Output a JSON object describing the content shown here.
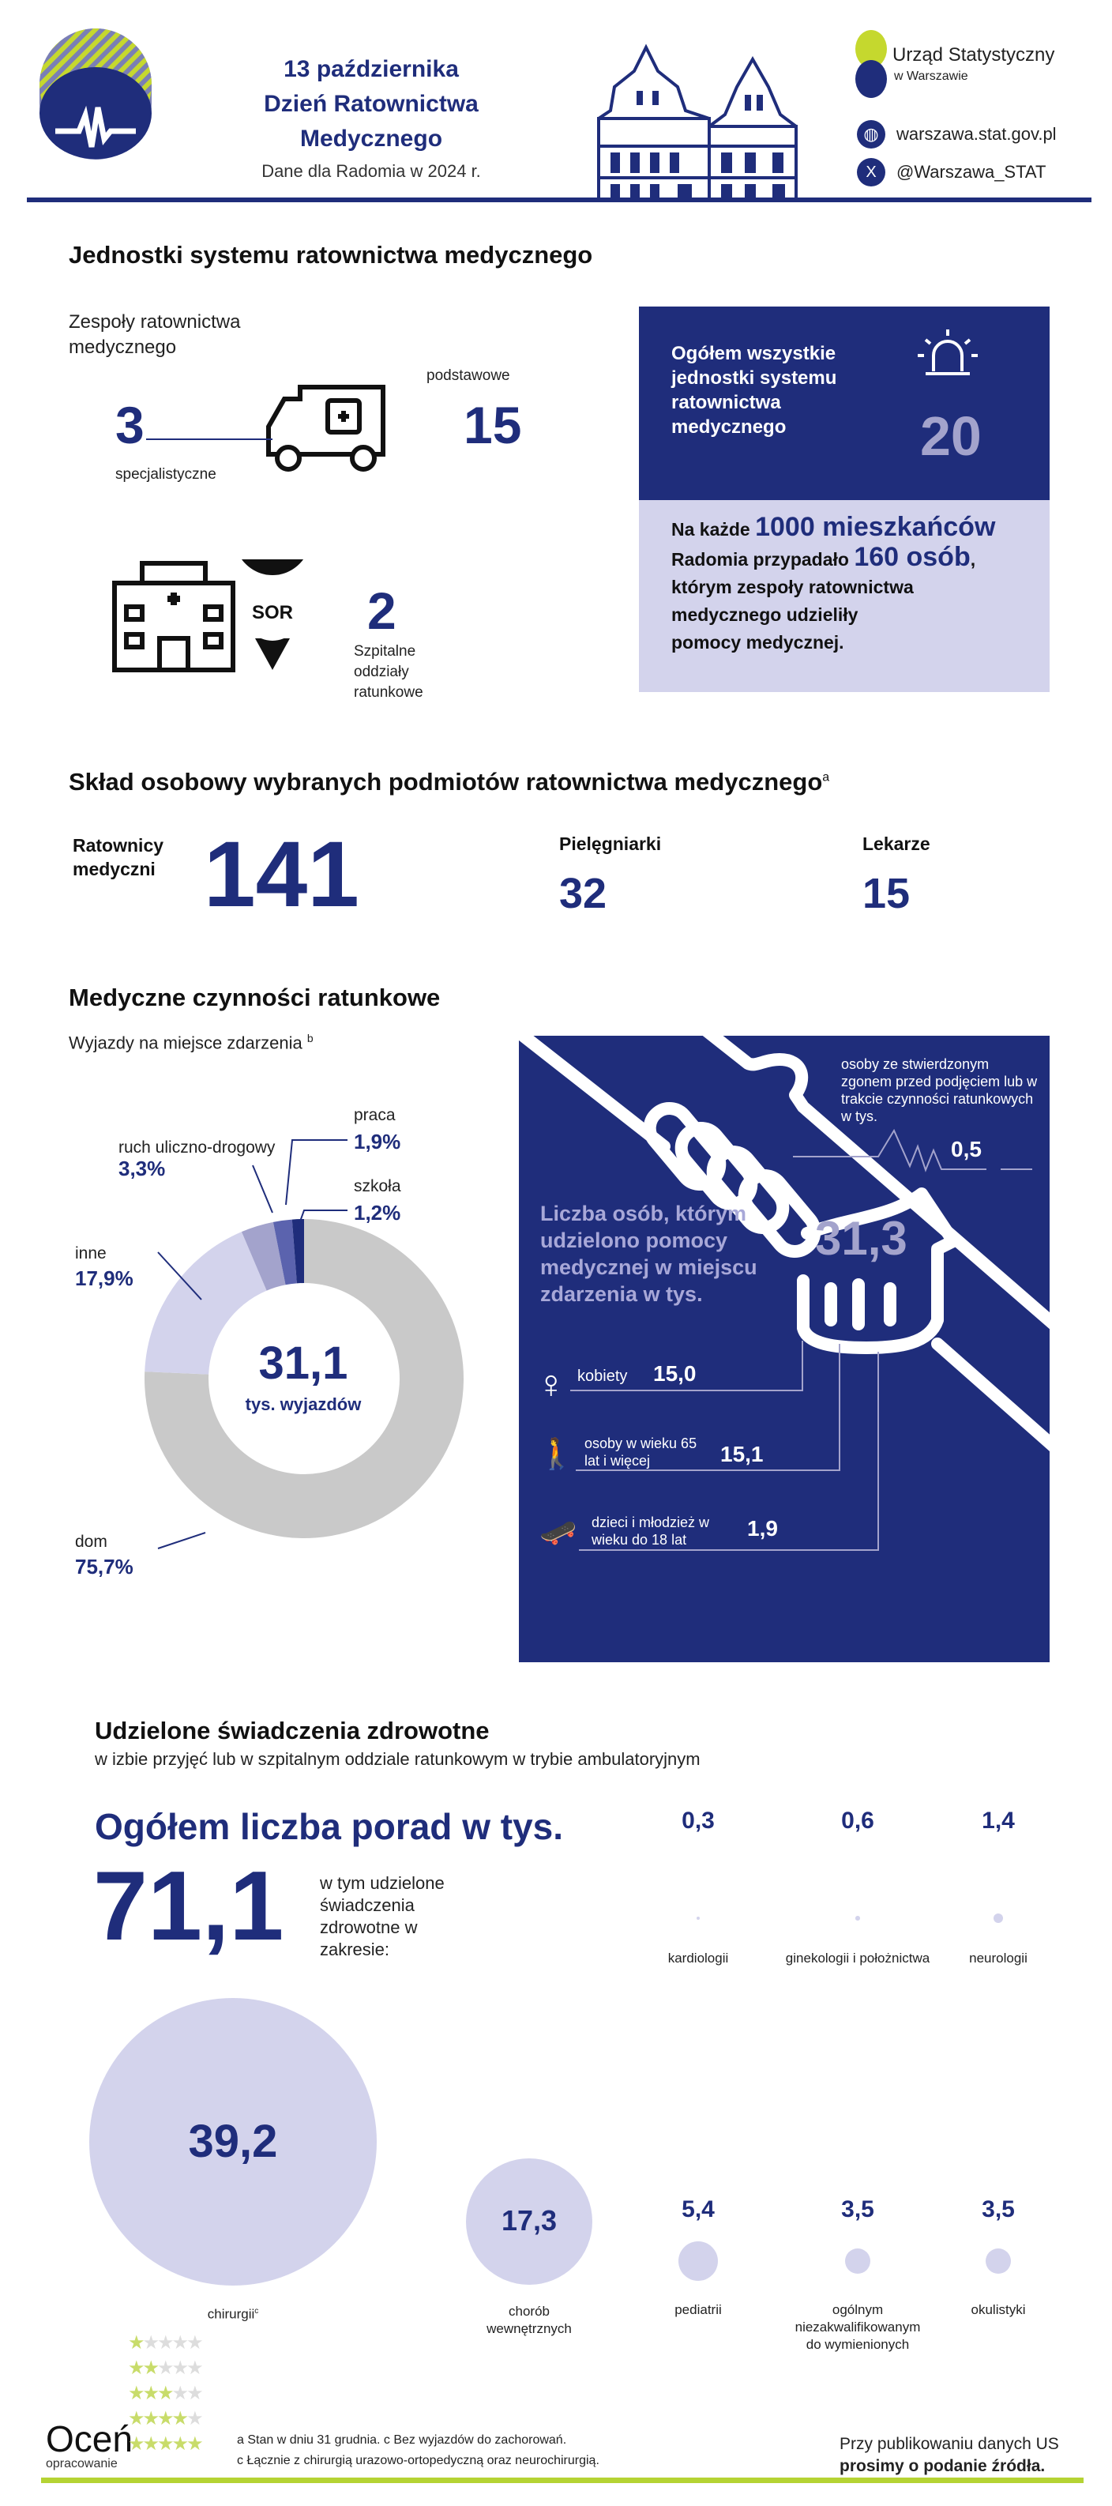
{
  "header": {
    "line1": "13 października",
    "line2": "Dzień Ratownictwa",
    "line3": "Medycznego",
    "subtitle": "Dane dla Radomia w 2024 r.",
    "org_name": "Urząd Statystyczny",
    "org_sub": "w Warszawie",
    "website": "warszawa.stat.gov.pl",
    "twitter": "@Warszawa_STAT",
    "icons": [
      "heartbeat-icon",
      "building-illustration",
      "globe-icon",
      "x-logo-icon"
    ]
  },
  "units": {
    "title": "Jednostki systemu ratownictwa medycznego",
    "teams_label": "Zespoły ratownictwa medycznego",
    "specialist_value": "3",
    "specialist_label": "specjalistyczne",
    "basic_value": "15",
    "basic_label": "podstawowe",
    "sor_badge": "SOR",
    "sor_value": "2",
    "sor_label": "Szpitalne oddziały ratunkowe",
    "total_text": "Ogółem wszystkie jednostki systemu ratownictwa medycznego",
    "total_value": "20",
    "per1000_a": "Na każde ",
    "per1000_b": "1000 mieszkańców",
    "per1000_c": "Radomia przypadało ",
    "per1000_d": "160 osób",
    "per1000_e": "którym zespoły ratownictwa medycznego udzieliły pomocy medycznej."
  },
  "staff": {
    "title": "Skład osobowy wybranych podmiotów ratownictwa medycznego",
    "title_note": "a",
    "items": [
      {
        "label": "Ratownicy medyczni",
        "value": "141"
      },
      {
        "label": "Pielęgniarki",
        "value": "32"
      },
      {
        "label": "Lekarze",
        "value": "15"
      }
    ]
  },
  "rescue": {
    "title": "Medyczne czynności ratunkowe",
    "subtitle": "Wyjazdy na miejsce zdarzenia",
    "subtitle_note": "b",
    "center_value": "31,1",
    "center_label": "tys. wyjazdów"
  },
  "chart_data": {
    "type": "pie",
    "title": "Wyjazdy na miejsce zdarzenia",
    "total": "31,1 tys. wyjazdów",
    "unit": "%",
    "slices": [
      {
        "label": "dom",
        "value": 75.7,
        "display": "75,7%",
        "color": "#c9c9c9"
      },
      {
        "label": "inne",
        "value": 17.9,
        "display": "17,9%",
        "color": "#d3d3ec"
      },
      {
        "label": "ruch uliczno-drogowy",
        "value": 3.3,
        "display": "3,3%",
        "color": "#a3a3cc"
      },
      {
        "label": "praca",
        "value": 1.9,
        "display": "1,9%",
        "color": "#5b63ae"
      },
      {
        "label": "szkoła",
        "value": 1.2,
        "display": "1,2%",
        "color": "#1f2d7b"
      }
    ]
  },
  "help": {
    "death_label": "osoby ze stwierdzonym zgonem przed podjęciem lub  w trakcie czynności ratunkowych w tys.",
    "death_value": "0,5",
    "main_label": "Liczba osób, którym udzielono pomocy medycznej w miejscu zdarzenia w tys.",
    "main_value": "31,3",
    "women_label": "kobiety",
    "women_value": "15,0",
    "elderly_label": "osoby w wieku 65 lat i więcej",
    "elderly_value": "15,1",
    "children_label": "dzieci i młodzież w wieku do 18 lat",
    "children_value": "1,9"
  },
  "services": {
    "title": "Udzielone świadczenia zdrowotne",
    "subtitle": "w izbie przyjęć lub w szpitalnym oddziale ratunkowym w trybie ambulatoryjnym",
    "total_title": "Ogółem liczba porad w tys.",
    "total_value": "71,1",
    "scope_text": "w tym udzielone świadczenia zdrowotne w zakresie:",
    "items": [
      {
        "label": "chirurgii",
        "note": "c",
        "value": 39.2,
        "display": "39,2"
      },
      {
        "label": "chorób wewnętrznych",
        "value": 17.3,
        "display": "17,3"
      },
      {
        "label": "kardiologii",
        "value": 0.3,
        "display": "0,3"
      },
      {
        "label": "ginekologii i położnictwa",
        "value": 0.6,
        "display": "0,6"
      },
      {
        "label": "neurologii",
        "value": 1.4,
        "display": "1,4"
      },
      {
        "label": "pediatrii",
        "value": 5.4,
        "display": "5,4"
      },
      {
        "label": "ogólnym niezakwalifikowanym do wymienionych",
        "value": 3.5,
        "display": "3,5"
      },
      {
        "label": "okulistyki",
        "value": 3.5,
        "display": "3,5"
      }
    ]
  },
  "footer": {
    "rate_title": "Oceń",
    "rate_sub": "opracowanie",
    "note1": "a Stan w dniu 31 grudnia. c Bez wyjazdów do zachorowań.",
    "note2": "c Łącznie z chirurgią urazowo-ortopedyczną oraz neurochirurgią.",
    "source1": "Przy publikowaniu danych US",
    "source2": "prosimy o podanie źródła."
  }
}
